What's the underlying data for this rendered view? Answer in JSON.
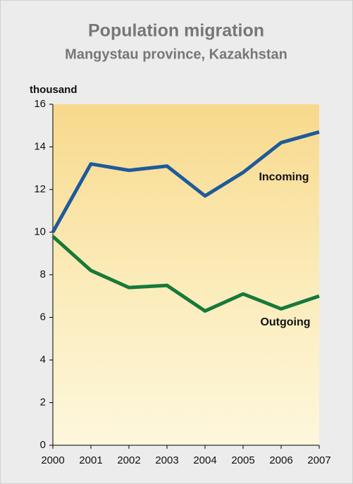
{
  "chart_data": {
    "type": "line",
    "title": "Population migration",
    "subtitle": "Mangystau province, Kazakhstan",
    "y_label": "thousand",
    "x": [
      2000,
      2001,
      2002,
      2003,
      2004,
      2005,
      2006,
      2007
    ],
    "xlim": [
      2000,
      2007
    ],
    "xticks": [
      2000,
      2001,
      2002,
      2003,
      2004,
      2005,
      2006,
      2007
    ],
    "ylim": [
      0,
      16
    ],
    "yticks": [
      0,
      2,
      4,
      6,
      8,
      10,
      12,
      14,
      16
    ],
    "series": [
      {
        "name": "Incoming",
        "color": "#1f5a9a",
        "values": [
          10,
          13.2,
          12.9,
          13.1,
          11.7,
          12.8,
          14.2,
          14.7
        ]
      },
      {
        "name": "Outgoing",
        "color": "#17793a",
        "values": [
          9.8,
          8.2,
          7.4,
          7.5,
          6.3,
          7.1,
          6.4,
          7.0
        ]
      }
    ]
  }
}
